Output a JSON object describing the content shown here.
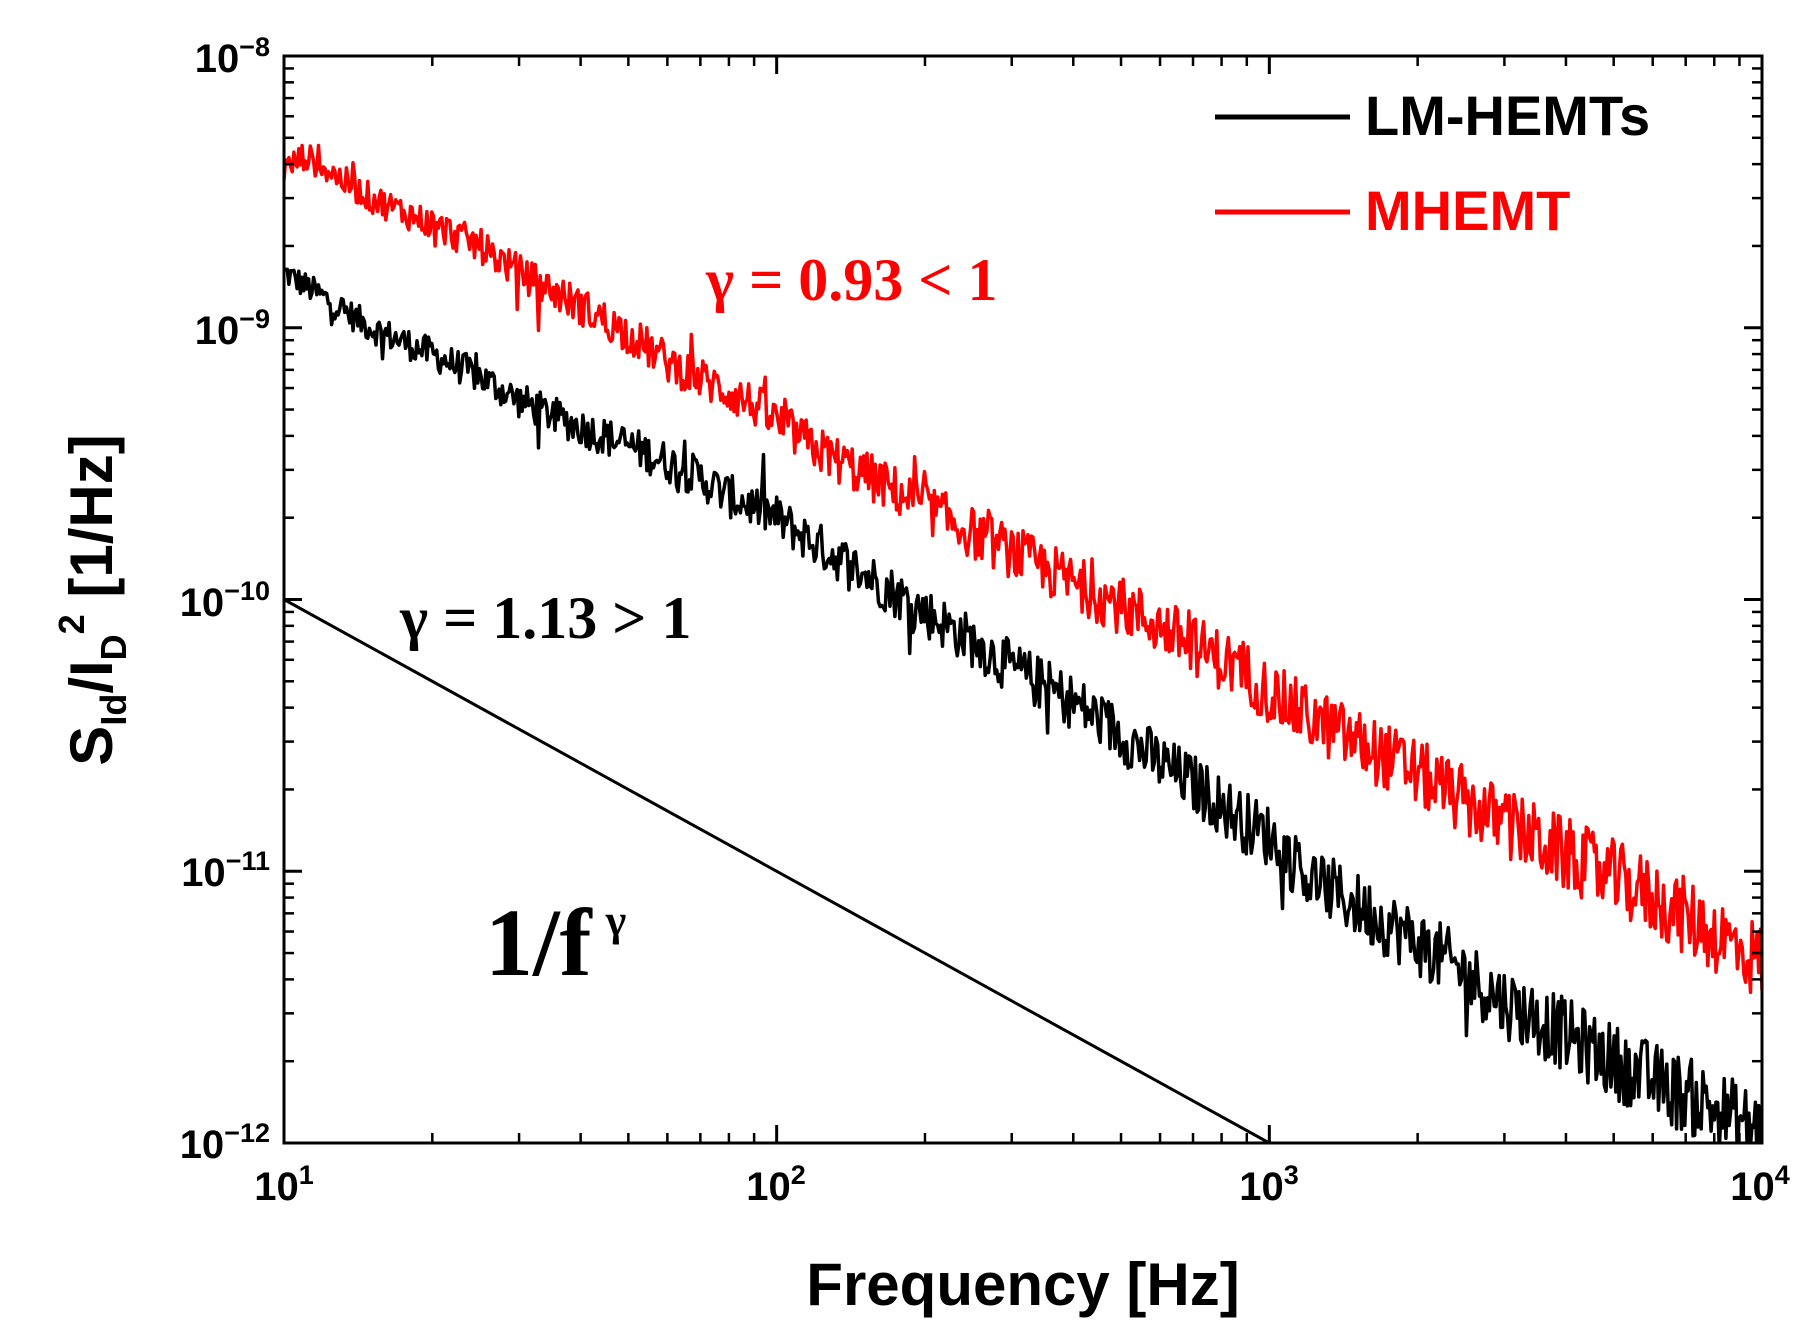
{
  "chart_data": {
    "type": "line",
    "xscale": "log",
    "yscale": "log",
    "xlim": [
      10,
      10000
    ],
    "ylim": [
      1e-12,
      1e-08
    ],
    "xlabel": "Frequency [Hz]",
    "ylabel": {
      "main1": "S",
      "sub1": "Id",
      "main2": "/I",
      "sub2": "D",
      "sup": "2",
      "rest": " [1/Hz]"
    },
    "x_ticks": [
      {
        "base": "10",
        "exp": "1"
      },
      {
        "base": "10",
        "exp": "2"
      },
      {
        "base": "10",
        "exp": "3"
      },
      {
        "base": "10",
        "exp": "4"
      }
    ],
    "y_ticks": [
      {
        "base": "10",
        "exp": "−8"
      },
      {
        "base": "10",
        "exp": "−9"
      },
      {
        "base": "10",
        "exp": "−10"
      },
      {
        "base": "10",
        "exp": "−11"
      },
      {
        "base": "10",
        "exp": "−12"
      }
    ],
    "series": [
      {
        "name": "LM-HEMTs",
        "color": "#000000",
        "slope_gamma": 1.13,
        "x": [
          10,
          12,
          15,
          20,
          25,
          30,
          40,
          50,
          60,
          70,
          80,
          90,
          100,
          120,
          150,
          200,
          250,
          300,
          400,
          500,
          600,
          700,
          800,
          900,
          1000,
          1200,
          1500,
          2000,
          2500,
          3000,
          4000,
          5000,
          6000,
          7000,
          8000,
          9000,
          10000
        ],
        "y": [
          1.6e-09,
          1.3e-09,
          1e-09,
          8e-10,
          6.6e-10,
          5.4e-10,
          4.3e-10,
          3.7e-10,
          3.2e-10,
          2.8e-10,
          2.4e-10,
          2.2e-10,
          2e-10,
          1.6e-10,
          1.25e-10,
          9e-11,
          7e-11,
          5.6e-11,
          4.2e-11,
          3.2e-11,
          2.5e-11,
          2.1e-11,
          1.75e-11,
          1.5e-11,
          1.35e-11,
          9.5e-12,
          7.5e-12,
          5.5e-12,
          4.2e-12,
          3.3e-12,
          2.5e-12,
          2e-12,
          1.7e-12,
          1.5e-12,
          1.35e-12,
          1.2e-12,
          1.1e-12
        ]
      },
      {
        "name": "MHEMT",
        "color": "#ff0000",
        "slope_gamma": 0.93,
        "x": [
          10,
          11,
          15,
          20,
          25,
          30,
          40,
          50,
          60,
          70,
          80,
          90,
          100,
          120,
          150,
          200,
          250,
          300,
          400,
          500,
          600,
          700,
          800,
          900,
          1000,
          1200,
          1500,
          2000,
          2500,
          3000,
          4000,
          5000,
          6000,
          7000,
          8000,
          9000,
          10000
        ],
        "y": [
          3.8e-09,
          4.3e-09,
          3e-09,
          2.4e-09,
          2e-09,
          1.6e-09,
          1.2e-09,
          9.5e-10,
          7.5e-10,
          6.5e-10,
          5.8e-10,
          5.2e-10,
          4.5e-10,
          3.6e-10,
          2.9e-10,
          2.2e-10,
          1.75e-10,
          1.5e-10,
          1.15e-10,
          9.5e-11,
          8e-11,
          6.8e-11,
          6e-11,
          5.4e-11,
          4.5e-11,
          3.7e-11,
          3e-11,
          2.3e-11,
          1.8e-11,
          1.5e-11,
          1.15e-11,
          9.5e-12,
          8e-12,
          6.8e-12,
          5.9e-12,
          5.2e-12,
          4.6e-12
        ]
      },
      {
        "name": "reference 1/f line",
        "color": "#000000",
        "x": [
          10,
          1000
        ],
        "y": [
          1e-10,
          1e-12
        ]
      }
    ],
    "legend": {
      "position": "top-right",
      "entries": [
        {
          "label": "LM-HEMTs",
          "color": "#000000"
        },
        {
          "label": "MHEMT",
          "color": "#ff0000"
        }
      ]
    },
    "annotations": [
      {
        "id": "mhemt-gamma",
        "text": "γ = 0.93 < 1",
        "color": "#ff0000"
      },
      {
        "id": "lm-gamma",
        "text": "γ = 1.13 > 1",
        "color": "#000000"
      },
      {
        "id": "one-over-f",
        "base": "1/f",
        "sup": "γ",
        "color": "#000000"
      }
    ]
  }
}
